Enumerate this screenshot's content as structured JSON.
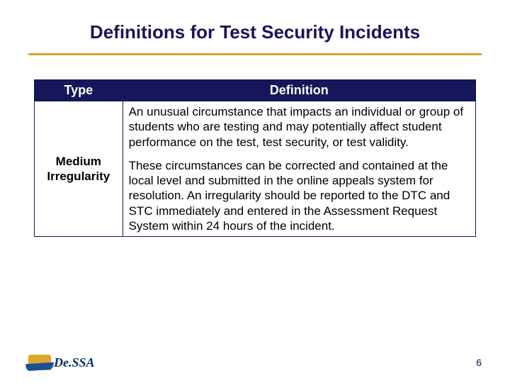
{
  "colors": {
    "title_text": "#16165a",
    "title_rule": "#d9a428",
    "table_border": "#16165a",
    "header_bg": "#16165a",
    "header_text": "#ffffff",
    "body_text": "#000000",
    "page_num_text": "#16165a",
    "logo_text": "#0a2e6b"
  },
  "title": "Definitions for Test Security Incidents",
  "table": {
    "col_widths_pct": [
      20,
      80
    ],
    "columns": [
      "Type",
      "Definition"
    ],
    "row_type": "Medium Irregularity",
    "def_para1": "An unusual circumstance that impacts an individual or group of students who are testing and may potentially affect student performance on the test, test security, or test validity.",
    "def_para2": "These circumstances can be corrected and contained at the local level and submitted in the online appeals system for resolution.  An irregularity should be reported to the DTC and STC immediately and entered in the Assessment Request System within 24 hours of the incident."
  },
  "footer": {
    "logo_text": "De.SSA",
    "page_number": "6"
  }
}
